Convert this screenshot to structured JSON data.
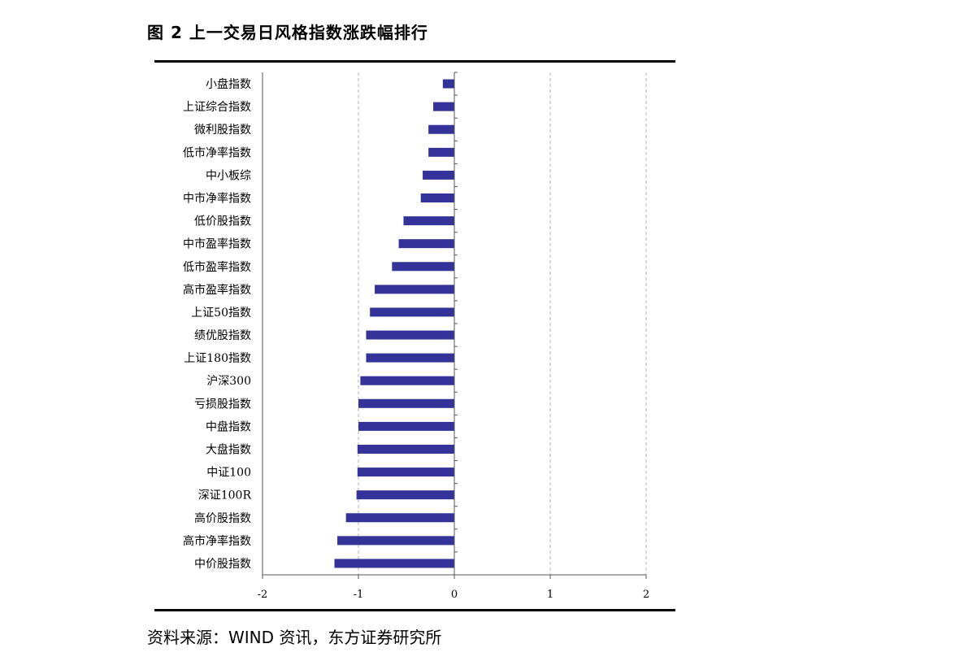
{
  "figure": {
    "title": "图 2 上一交易日风格指数涨跌幅排行",
    "source": "资料来源：WIND 资讯，东方证券研究所"
  },
  "chart_data": {
    "type": "bar",
    "orientation": "horizontal",
    "categories": [
      "小盘指数",
      "上证综合指数",
      "微利股指数",
      "低市净率指数",
      "中小板综",
      "中市净率指数",
      "低价股指数",
      "中市盈率指数",
      "低市盈率指数",
      "高市盈率指数",
      "上证50指数",
      "绩优股指数",
      "上证180指数",
      "沪深300",
      "亏损股指数",
      "中盘指数",
      "大盘指数",
      "中证100",
      "深证100R",
      "高价股指数",
      "高市净率指数",
      "中价股指数"
    ],
    "values": [
      -0.12,
      -0.22,
      -0.27,
      -0.27,
      -0.33,
      -0.35,
      -0.53,
      -0.58,
      -0.65,
      -0.83,
      -0.88,
      -0.92,
      -0.92,
      -0.98,
      -1.0,
      -1.0,
      -1.01,
      -1.01,
      -1.02,
      -1.13,
      -1.22,
      -1.25
    ],
    "xlim": [
      -2,
      2
    ],
    "xticks": [
      -2,
      -1,
      0,
      1,
      2
    ],
    "xtick_labels": [
      "-2",
      "-1",
      "0",
      "1",
      "2"
    ],
    "grid": "vertical dashed",
    "bar_color": "#333399"
  }
}
